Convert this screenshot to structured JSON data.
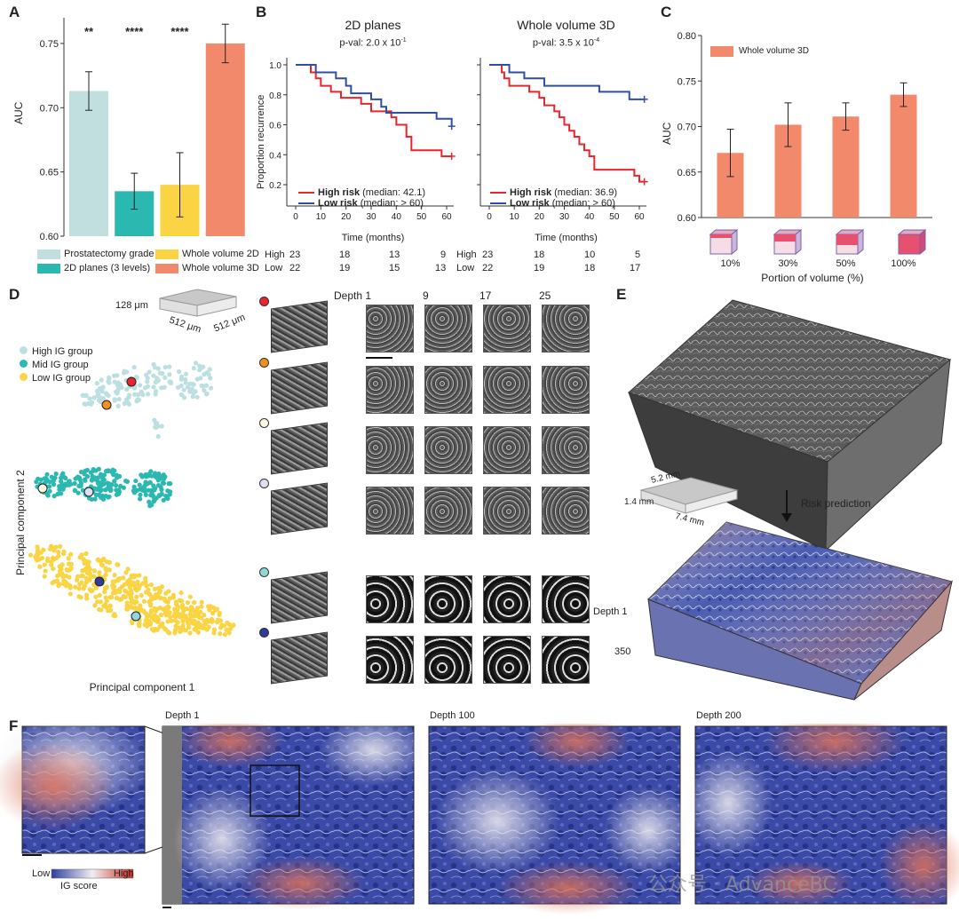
{
  "panels": {
    "a": "A",
    "b": "B",
    "c": "C",
    "d": "D",
    "e": "E",
    "f": "F"
  },
  "panel_a": {
    "ylabel": "AUC",
    "legend": [
      "Prostatectomy grade",
      "2D planes (3 levels)",
      "Whole volume 2D",
      "Whole volume 3D"
    ]
  },
  "panel_b": {
    "left": {
      "title": "2D planes",
      "pval": "p-val: 2.0 x 10",
      "pval_exp": "-1",
      "legend_high": "High risk",
      "legend_high_med": "(median: 42.1)",
      "legend_low": "Low risk",
      "legend_low_med": "(median: > 60)"
    },
    "right": {
      "title": "Whole volume 3D",
      "pval": "p-val: 3.5 x 10",
      "pval_exp": "-4",
      "legend_high": "High risk",
      "legend_high_med": "(median: 36.9)",
      "legend_low": "Low risk",
      "legend_low_med": "(median: > 60)"
    },
    "ylabel": "Proportion recurrence",
    "xlabel": "Time (months)",
    "risk_table": {
      "row_labels": [
        "High",
        "Low"
      ],
      "left_high": [
        "23",
        "18",
        "13",
        "9"
      ],
      "left_low": [
        "22",
        "19",
        "15",
        "13"
      ],
      "right_high": [
        "23",
        "18",
        "10",
        "5"
      ],
      "right_low": [
        "22",
        "19",
        "18",
        "17"
      ]
    }
  },
  "panel_c": {
    "ylabel": "AUC",
    "xlabel": "Portion of volume (%)",
    "legend": "Whole volume 3D"
  },
  "panel_d": {
    "cube_dims": {
      "z": "128 μm",
      "x": "512 μm",
      "y": "512 μm"
    },
    "legend": [
      "High IG group",
      "Mid IG group",
      "Low IG group"
    ],
    "xlabel": "Principal component 1",
    "ylabel": "Principal component 2",
    "depth_labels": [
      "Depth 1",
      "9",
      "17",
      "25"
    ],
    "row_colors": [
      "#e8262b",
      "#f0901e",
      "#fbf8df",
      "#dcdff0",
      "#8fd8da",
      "#2e3a9c"
    ]
  },
  "panel_e": {
    "dims": {
      "a": "5.2 mm",
      "b": "1.4 mm",
      "c": "7.4 mm"
    },
    "arrow_label": "Risk prediction",
    "depth_top": "Depth 1",
    "depth_bottom": "350"
  },
  "panel_f": {
    "depths": [
      "Depth 1",
      "Depth 100",
      "Depth 200"
    ],
    "cbar_low": "Low",
    "cbar_high": "High",
    "cbar_label": "IG score",
    "watermark": "公众号 · AdvanceBC"
  },
  "chart_data": [
    {
      "type": "bar",
      "title": "",
      "ylabel": "AUC",
      "ylim": [
        0.6,
        0.77
      ],
      "yticks": [
        "0.60",
        "0.65",
        "0.70",
        "0.75"
      ],
      "categories": [
        "Prostatectomy grade",
        "2D planes (3 levels)",
        "Whole volume 2D",
        "Whole volume 3D"
      ],
      "values": [
        0.713,
        0.635,
        0.64,
        0.75
      ],
      "errors": [
        0.015,
        0.014,
        0.025,
        0.015
      ],
      "significance": [
        "**",
        "****",
        "****",
        ""
      ],
      "colors": [
        "#c2dfe0",
        "#2bb8b0",
        "#fbd443",
        "#f3896b"
      ]
    },
    {
      "type": "line",
      "title": "2D planes",
      "xlabel": "Time (months)",
      "ylabel": "Proportion recurrence",
      "xlim": [
        0,
        60
      ],
      "ylim": [
        0.2,
        1.0
      ],
      "xticks": [
        "0",
        "10",
        "20",
        "30",
        "40",
        "50",
        "60"
      ],
      "yticks": [
        "0.2",
        "0.4",
        "0.6",
        "0.8",
        "1.0"
      ],
      "series": [
        {
          "name": "High risk",
          "color": "#e8262b",
          "x": [
            0,
            4,
            6,
            8,
            10,
            14,
            18,
            24,
            26,
            30,
            34,
            38,
            40,
            44,
            46,
            50,
            56,
            58,
            62
          ],
          "y": [
            1.0,
            1.0,
            0.95,
            0.91,
            0.86,
            0.82,
            0.78,
            0.78,
            0.74,
            0.69,
            0.69,
            0.65,
            0.6,
            0.52,
            0.43,
            0.43,
            0.43,
            0.39,
            0.39
          ]
        },
        {
          "name": "Low risk",
          "color": "#2e4fa3",
          "x": [
            0,
            6,
            8,
            12,
            16,
            20,
            22,
            26,
            30,
            34,
            36,
            40,
            46,
            50,
            56,
            58,
            62
          ],
          "y": [
            1.0,
            1.0,
            0.95,
            0.95,
            0.91,
            0.86,
            0.81,
            0.81,
            0.77,
            0.72,
            0.68,
            0.68,
            0.68,
            0.68,
            0.64,
            0.64,
            0.59
          ]
        }
      ]
    },
    {
      "type": "line",
      "title": "Whole volume 3D",
      "xlabel": "Time (months)",
      "xlim": [
        0,
        60
      ],
      "ylim": [
        0.2,
        1.0
      ],
      "xticks": [
        "0",
        "10",
        "20",
        "30",
        "40",
        "50",
        "60"
      ],
      "series": [
        {
          "name": "High risk",
          "color": "#e8262b",
          "x": [
            0,
            4,
            5,
            6,
            8,
            12,
            16,
            20,
            22,
            24,
            26,
            28,
            30,
            32,
            34,
            36,
            38,
            40,
            42,
            44,
            46,
            48,
            50,
            54,
            58,
            60,
            62
          ],
          "y": [
            1.0,
            1.0,
            0.95,
            0.91,
            0.86,
            0.86,
            0.82,
            0.78,
            0.73,
            0.73,
            0.69,
            0.65,
            0.6,
            0.56,
            0.52,
            0.47,
            0.43,
            0.39,
            0.3,
            0.3,
            0.3,
            0.3,
            0.3,
            0.3,
            0.26,
            0.22,
            0.22
          ]
        },
        {
          "name": "Low risk",
          "color": "#2e4fa3",
          "x": [
            0,
            6,
            8,
            10,
            14,
            18,
            22,
            26,
            30,
            36,
            44,
            50,
            56,
            60,
            62
          ],
          "y": [
            1.0,
            1.0,
            0.95,
            0.95,
            0.91,
            0.91,
            0.86,
            0.86,
            0.86,
            0.86,
            0.82,
            0.82,
            0.77,
            0.77,
            0.77
          ]
        }
      ]
    },
    {
      "type": "bar",
      "title": "",
      "xlabel": "Portion of volume (%)",
      "ylabel": "AUC",
      "ylim": [
        0.6,
        0.8
      ],
      "yticks": [
        "0.60",
        "0.65",
        "0.70",
        "0.75",
        "0.80"
      ],
      "categories": [
        "10%",
        "30%",
        "50%",
        "100%"
      ],
      "values": [
        0.671,
        0.702,
        0.711,
        0.735
      ],
      "errors": [
        0.026,
        0.024,
        0.015,
        0.013
      ],
      "series": [
        {
          "name": "Whole volume 3D",
          "color": "#f3896b"
        }
      ]
    }
  ]
}
